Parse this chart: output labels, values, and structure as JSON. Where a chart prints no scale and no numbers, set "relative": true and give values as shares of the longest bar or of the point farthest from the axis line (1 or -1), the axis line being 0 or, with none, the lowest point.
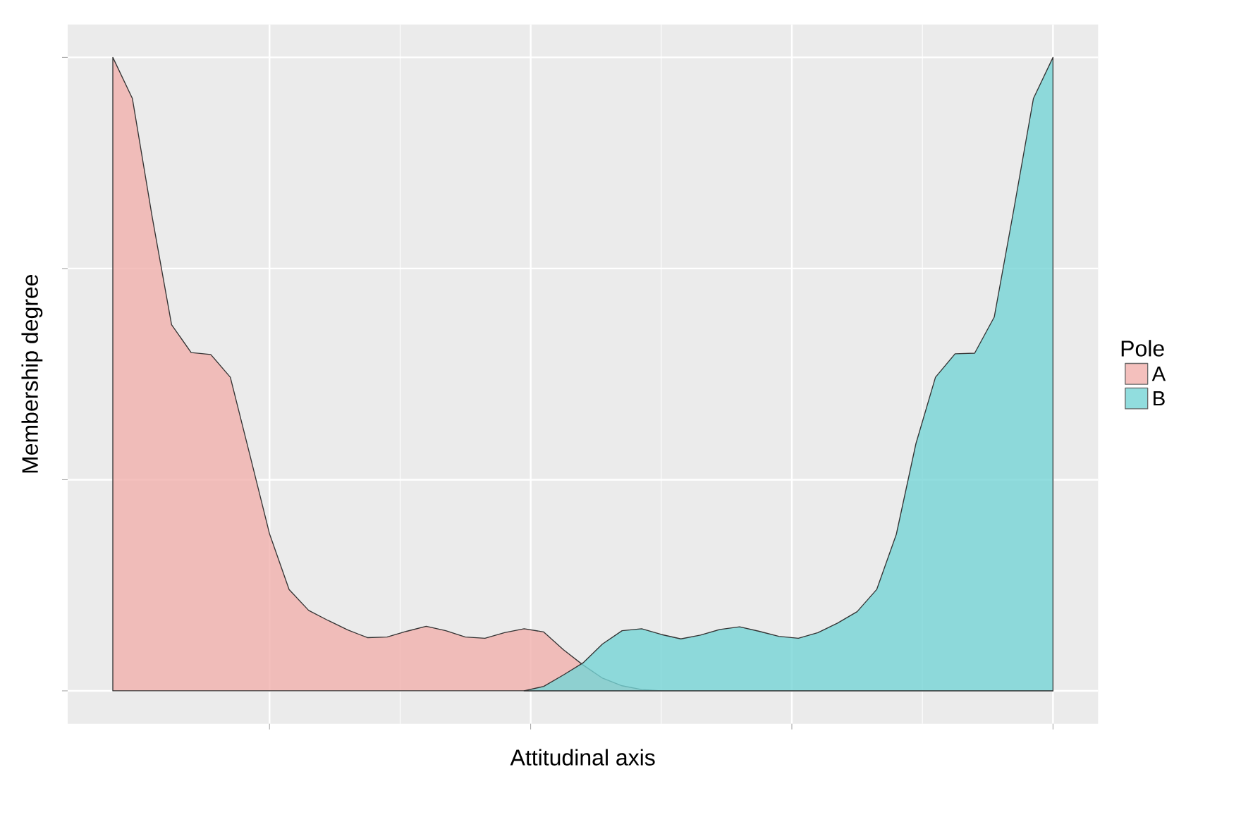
{
  "chart_data": {
    "type": "area",
    "relative": true,
    "xlabel": "Attitudinal axis",
    "ylabel": "Membership degree",
    "legend_title": "Pole",
    "legend": "right",
    "grid": true,
    "categories": [
      null,
      null,
      null,
      null,
      null,
      null,
      null,
      null,
      null,
      null,
      null,
      null,
      null,
      null,
      null,
      null,
      null,
      null,
      null,
      null,
      null,
      null,
      null,
      null,
      null,
      null,
      null,
      null,
      null,
      null,
      null,
      null,
      null,
      null,
      null,
      null,
      null,
      null,
      null,
      null,
      null,
      null,
      null,
      null,
      null,
      null,
      null,
      null,
      null
    ],
    "series": [
      {
        "name": "A",
        "color": "#f1b0ac",
        "values": [
          1.0,
          0.935,
          0.75,
          0.578,
          0.534,
          0.531,
          0.495,
          0.372,
          0.248,
          0.16,
          0.127,
          0.111,
          0.096,
          0.084,
          0.085,
          0.094,
          0.102,
          0.095,
          0.085,
          0.083,
          0.092,
          0.098,
          0.093,
          0.065,
          0.041,
          0.02,
          0.008,
          0.002,
          0,
          0,
          0,
          0,
          0,
          0,
          0,
          0,
          0,
          0,
          0,
          0,
          0,
          0,
          0,
          0,
          0,
          0,
          0,
          0,
          0
        ]
      },
      {
        "name": "B",
        "color": "#76d4d6",
        "values": [
          null,
          null,
          null,
          null,
          null,
          null,
          null,
          null,
          null,
          null,
          null,
          null,
          null,
          null,
          null,
          null,
          null,
          null,
          null,
          null,
          null,
          0,
          0.007,
          0.025,
          0.044,
          0.074,
          0.095,
          0.098,
          0.089,
          0.082,
          0.088,
          0.097,
          0.101,
          0.094,
          0.086,
          0.083,
          0.092,
          0.107,
          0.125,
          0.16,
          0.247,
          0.39,
          0.495,
          0.532,
          0.533,
          0.59,
          0.76,
          0.935,
          1.0
        ]
      }
    ]
  }
}
